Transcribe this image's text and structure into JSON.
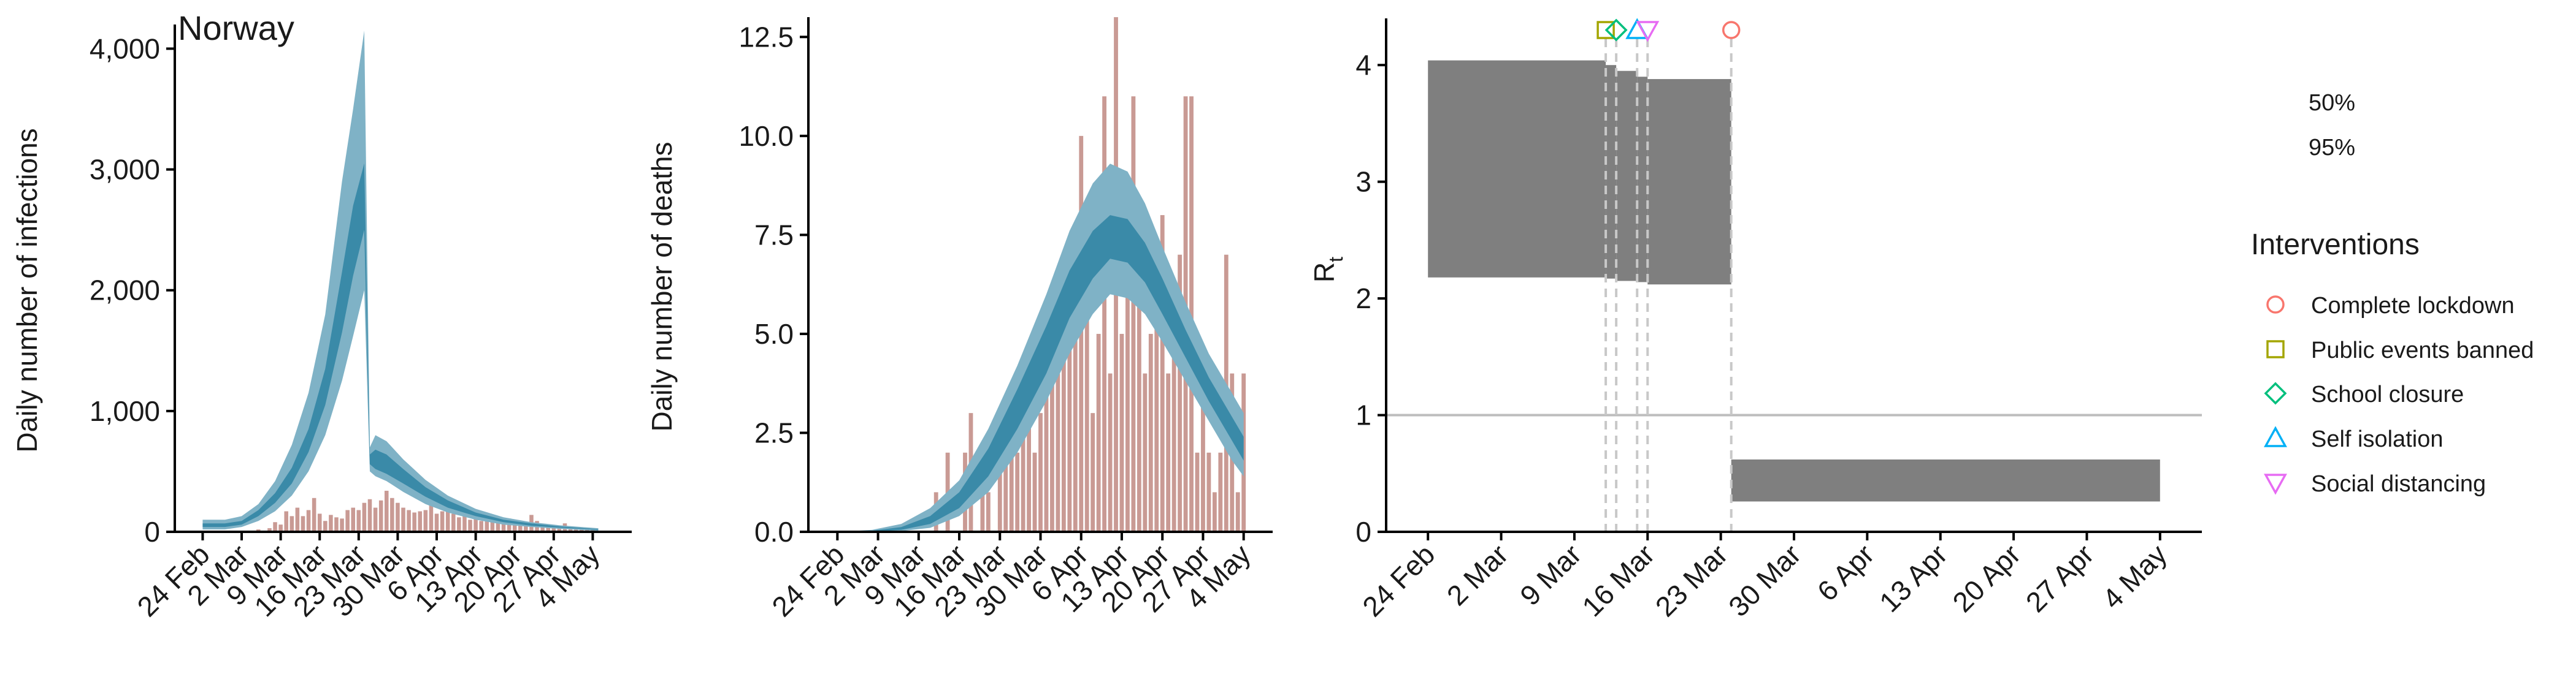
{
  "colors": {
    "band_outer": "#7fb2c6",
    "band_inner": "#3a8aa8",
    "band_mid_line": "#2f7f9d",
    "bar": "#c99a94",
    "rt_band": "#7f7f7f",
    "ref_line": "#bdbdbd",
    "dashed": "#c8c8c8",
    "axis": "#000000",
    "complete_lockdown": "#f8766d",
    "public_events_banned": "#a3a500",
    "school_closure": "#00bf7d",
    "self_isolation": "#00b0f6",
    "social_distancing": "#e76bf3"
  },
  "chart_data": [
    {
      "type": "area",
      "title": "Norway",
      "ylabel": "Daily number of infections",
      "xlabel": "",
      "x_start": "2020-02-21",
      "ylim": [
        0,
        4200
      ],
      "yticks": [
        0,
        1000,
        2000,
        3000,
        4000
      ],
      "ytick_labels": [
        "0",
        "1,000",
        "2,000",
        "3,000",
        "4,000"
      ],
      "xticks": [
        "2020-02-24",
        "2020-03-02",
        "2020-03-09",
        "2020-03-16",
        "2020-03-23",
        "2020-03-30",
        "2020-04-06",
        "2020-04-13",
        "2020-04-20",
        "2020-04-27",
        "2020-05-04"
      ],
      "xtick_labels": [
        "24 Feb",
        "2 Mar",
        "9 Mar",
        "16 Mar",
        "23 Mar",
        "30 Mar",
        "6 Apr",
        "13 Apr",
        "20 Apr",
        "27 Apr",
        "4 May"
      ],
      "xlim": [
        "2020-02-19",
        "2020-05-11"
      ],
      "grid": false,
      "bars": {
        "x": [
          "2020-03-05",
          "2020-03-07",
          "2020-03-08",
          "2020-03-09",
          "2020-03-10",
          "2020-03-11",
          "2020-03-12",
          "2020-03-13",
          "2020-03-14",
          "2020-03-15",
          "2020-03-16",
          "2020-03-17",
          "2020-03-18",
          "2020-03-19",
          "2020-03-20",
          "2020-03-21",
          "2020-03-22",
          "2020-03-23",
          "2020-03-24",
          "2020-03-25",
          "2020-03-26",
          "2020-03-27",
          "2020-03-28",
          "2020-03-29",
          "2020-03-30",
          "2020-03-31",
          "2020-04-01",
          "2020-04-02",
          "2020-04-03",
          "2020-04-04",
          "2020-04-05",
          "2020-04-06",
          "2020-04-07",
          "2020-04-08",
          "2020-04-09",
          "2020-04-10",
          "2020-04-11",
          "2020-04-12",
          "2020-04-13",
          "2020-04-14",
          "2020-04-15",
          "2020-04-16",
          "2020-04-17",
          "2020-04-18",
          "2020-04-19",
          "2020-04-20",
          "2020-04-21",
          "2020-04-22",
          "2020-04-23",
          "2020-04-24",
          "2020-04-25",
          "2020-04-26",
          "2020-04-27",
          "2020-04-28",
          "2020-04-29",
          "2020-04-30",
          "2020-05-01",
          "2020-05-02",
          "2020-05-03",
          "2020-05-04",
          "2020-05-05"
        ],
        "values": [
          20,
          30,
          80,
          60,
          170,
          130,
          200,
          130,
          180,
          280,
          150,
          90,
          140,
          120,
          110,
          180,
          200,
          180,
          240,
          270,
          200,
          260,
          340,
          280,
          240,
          200,
          180,
          160,
          170,
          180,
          260,
          150,
          170,
          220,
          150,
          120,
          140,
          100,
          110,
          90,
          130,
          90,
          100,
          70,
          110,
          60,
          80,
          70,
          140,
          90,
          60,
          60,
          40,
          50,
          70,
          40,
          30,
          20,
          30,
          20,
          10
        ]
      },
      "band_outer": {
        "x": [
          "2020-02-24",
          "2020-02-28",
          "2020-03-02",
          "2020-03-05",
          "2020-03-08",
          "2020-03-11",
          "2020-03-14",
          "2020-03-17",
          "2020-03-20",
          "2020-03-22",
          "2020-03-24",
          "2020-03-25",
          "2020-03-26",
          "2020-03-28",
          "2020-03-31",
          "2020-04-04",
          "2020-04-08",
          "2020-04-13",
          "2020-04-18",
          "2020-04-23",
          "2020-04-28",
          "2020-05-02",
          "2020-05-05"
        ],
        "low": [
          20,
          20,
          40,
          90,
          170,
          300,
          500,
          800,
          1250,
          1620,
          2000,
          500,
          460,
          420,
          330,
          230,
          160,
          100,
          60,
          40,
          25,
          15,
          10
        ],
        "high": [
          100,
          100,
          130,
          230,
          420,
          720,
          1150,
          1800,
          2900,
          3500,
          4150,
          700,
          800,
          750,
          600,
          430,
          300,
          190,
          120,
          80,
          55,
          40,
          30
        ]
      },
      "band_inner": {
        "x": [
          "2020-02-24",
          "2020-02-28",
          "2020-03-02",
          "2020-03-05",
          "2020-03-08",
          "2020-03-11",
          "2020-03-14",
          "2020-03-17",
          "2020-03-20",
          "2020-03-22",
          "2020-03-24",
          "2020-03-25",
          "2020-03-26",
          "2020-03-28",
          "2020-03-31",
          "2020-04-04",
          "2020-04-08",
          "2020-04-13",
          "2020-04-18",
          "2020-04-23",
          "2020-04-28",
          "2020-05-02",
          "2020-05-05"
        ],
        "low": [
          40,
          40,
          60,
          130,
          240,
          400,
          660,
          1050,
          1650,
          2120,
          2500,
          560,
          520,
          480,
          400,
          290,
          200,
          130,
          80,
          50,
          35,
          25,
          15
        ],
        "high": [
          70,
          70,
          90,
          180,
          320,
          530,
          850,
          1350,
          2150,
          2700,
          3050,
          640,
          680,
          640,
          520,
          370,
          260,
          160,
          100,
          70,
          45,
          32,
          22
        ]
      }
    },
    {
      "type": "area",
      "title": "",
      "ylabel": "Daily number of deaths",
      "xlabel": "",
      "ylim": [
        0,
        13
      ],
      "yticks": [
        0,
        2.5,
        5,
        7.5,
        10,
        12.5
      ],
      "ytick_labels": [
        "0.0",
        "2.5",
        "5.0",
        "7.5",
        "10.0",
        "12.5"
      ],
      "xticks": [
        "2020-02-24",
        "2020-03-02",
        "2020-03-09",
        "2020-03-16",
        "2020-03-23",
        "2020-03-30",
        "2020-04-06",
        "2020-04-13",
        "2020-04-20",
        "2020-04-27",
        "2020-05-04"
      ],
      "xtick_labels": [
        "24 Feb",
        "2 Mar",
        "9 Mar",
        "16 Mar",
        "23 Mar",
        "30 Mar",
        "6 Apr",
        "13 Apr",
        "20 Apr",
        "27 Apr",
        "4 May"
      ],
      "xlim": [
        "2020-02-19",
        "2020-05-09"
      ],
      "grid": false,
      "bars": {
        "x": [
          "2020-03-12",
          "2020-03-14",
          "2020-03-17",
          "2020-03-18",
          "2020-03-20",
          "2020-03-21",
          "2020-03-23",
          "2020-03-24",
          "2020-03-25",
          "2020-03-26",
          "2020-03-27",
          "2020-03-28",
          "2020-03-29",
          "2020-03-30",
          "2020-03-31",
          "2020-04-01",
          "2020-04-02",
          "2020-04-03",
          "2020-04-04",
          "2020-04-05",
          "2020-04-06",
          "2020-04-07",
          "2020-04-08",
          "2020-04-09",
          "2020-04-10",
          "2020-04-11",
          "2020-04-12",
          "2020-04-13",
          "2020-04-14",
          "2020-04-15",
          "2020-04-16",
          "2020-04-17",
          "2020-04-18",
          "2020-04-19",
          "2020-04-20",
          "2020-04-21",
          "2020-04-22",
          "2020-04-23",
          "2020-04-24",
          "2020-04-25",
          "2020-04-26",
          "2020-04-27",
          "2020-04-28",
          "2020-04-29",
          "2020-04-30",
          "2020-05-01",
          "2020-05-02",
          "2020-05-03",
          "2020-05-04"
        ],
        "values": [
          1,
          2,
          2,
          3,
          2,
          1,
          2,
          2,
          3,
          2,
          4,
          4,
          2,
          3,
          5,
          6,
          4,
          5,
          7,
          5,
          10,
          6,
          3,
          5,
          11,
          4,
          13,
          5,
          7,
          11,
          6,
          4,
          5,
          6,
          8,
          4,
          5,
          7,
          11,
          11,
          2,
          4,
          2,
          1,
          2,
          7,
          4,
          1,
          4
        ]
      },
      "band_outer": {
        "x": [
          "2020-02-24",
          "2020-03-01",
          "2020-03-06",
          "2020-03-11",
          "2020-03-16",
          "2020-03-21",
          "2020-03-26",
          "2020-03-31",
          "2020-04-04",
          "2020-04-08",
          "2020-04-11",
          "2020-04-14",
          "2020-04-17",
          "2020-04-20",
          "2020-04-24",
          "2020-04-28",
          "2020-05-02",
          "2020-05-04"
        ],
        "low": [
          0,
          0,
          0.02,
          0.1,
          0.4,
          1.0,
          2.0,
          3.3,
          4.5,
          5.5,
          6.0,
          5.9,
          5.5,
          4.8,
          3.8,
          2.8,
          1.8,
          1.4
        ],
        "high": [
          0,
          0.05,
          0.2,
          0.6,
          1.3,
          2.6,
          4.2,
          6.0,
          7.6,
          8.8,
          9.3,
          9.1,
          8.3,
          7.2,
          5.8,
          4.5,
          3.5,
          3.0
        ]
      },
      "band_inner": {
        "x": [
          "2020-02-24",
          "2020-03-01",
          "2020-03-06",
          "2020-03-11",
          "2020-03-16",
          "2020-03-21",
          "2020-03-26",
          "2020-03-31",
          "2020-04-04",
          "2020-04-08",
          "2020-04-11",
          "2020-04-14",
          "2020-04-17",
          "2020-04-20",
          "2020-04-24",
          "2020-04-28",
          "2020-05-02",
          "2020-05-04"
        ],
        "low": [
          0,
          0,
          0.05,
          0.2,
          0.6,
          1.4,
          2.6,
          4.0,
          5.4,
          6.4,
          6.9,
          6.8,
          6.3,
          5.5,
          4.4,
          3.3,
          2.3,
          1.8
        ],
        "high": [
          0,
          0.03,
          0.12,
          0.4,
          1.0,
          2.1,
          3.6,
          5.2,
          6.6,
          7.6,
          8.0,
          7.9,
          7.3,
          6.4,
          5.1,
          3.9,
          2.9,
          2.4
        ]
      }
    },
    {
      "type": "area",
      "title": "",
      "ylabel": "R",
      "ylabel_sub": "t",
      "xlabel": "",
      "ylim": [
        0,
        4.4
      ],
      "yticks": [
        0,
        1,
        2,
        3,
        4
      ],
      "ytick_labels": [
        "0",
        "1",
        "2",
        "3",
        "4"
      ],
      "xticks": [
        "2020-02-24",
        "2020-03-02",
        "2020-03-09",
        "2020-03-16",
        "2020-03-23",
        "2020-03-30",
        "2020-04-06",
        "2020-04-13",
        "2020-04-20",
        "2020-04-27",
        "2020-05-04"
      ],
      "xtick_labels": [
        "24 Feb",
        "2 Mar",
        "9 Mar",
        "16 Mar",
        "23 Mar",
        "30 Mar",
        "6 Apr",
        "13 Apr",
        "20 Apr",
        "27 Apr",
        "4 May"
      ],
      "xlim": [
        "2020-02-20",
        "2020-05-08"
      ],
      "grid": false,
      "reference_line": 1,
      "band_95": {
        "segments": [
          {
            "from": "2020-02-24",
            "to": "2020-03-12",
            "low": 2.18,
            "high": 4.04
          },
          {
            "from": "2020-03-12",
            "to": "2020-03-13",
            "low": 2.17,
            "high": 4.0
          },
          {
            "from": "2020-03-13",
            "to": "2020-03-15",
            "low": 2.15,
            "high": 3.95
          },
          {
            "from": "2020-03-15",
            "to": "2020-03-16",
            "low": 2.14,
            "high": 3.9
          },
          {
            "from": "2020-03-16",
            "to": "2020-03-24",
            "low": 2.12,
            "high": 3.88
          },
          {
            "from": "2020-03-24",
            "to": "2020-05-04",
            "low": 0.26,
            "high": 0.62
          }
        ]
      },
      "interventions": [
        {
          "name": "Public events banned",
          "date": "2020-03-12",
          "marker": "square"
        },
        {
          "name": "School closure",
          "date": "2020-03-13",
          "marker": "diamond"
        },
        {
          "name": "Self isolation",
          "date": "2020-03-15",
          "marker": "triangle-up"
        },
        {
          "name": "Social distancing",
          "date": "2020-03-16",
          "marker": "triangle-down"
        },
        {
          "name": "Complete lockdown",
          "date": "2020-03-24",
          "marker": "circle"
        }
      ]
    }
  ],
  "legend": {
    "ci_labels": [
      "50%",
      "95%"
    ],
    "title": "Interventions",
    "items": [
      {
        "label": "Complete lockdown",
        "marker": "circle",
        "color_key": "complete_lockdown"
      },
      {
        "label": "Public events banned",
        "marker": "square",
        "color_key": "public_events_banned"
      },
      {
        "label": "School closure",
        "marker": "diamond",
        "color_key": "school_closure"
      },
      {
        "label": "Self isolation",
        "marker": "triangle-up",
        "color_key": "self_isolation"
      },
      {
        "label": "Social distancing",
        "marker": "triangle-down",
        "color_key": "social_distancing"
      }
    ]
  }
}
